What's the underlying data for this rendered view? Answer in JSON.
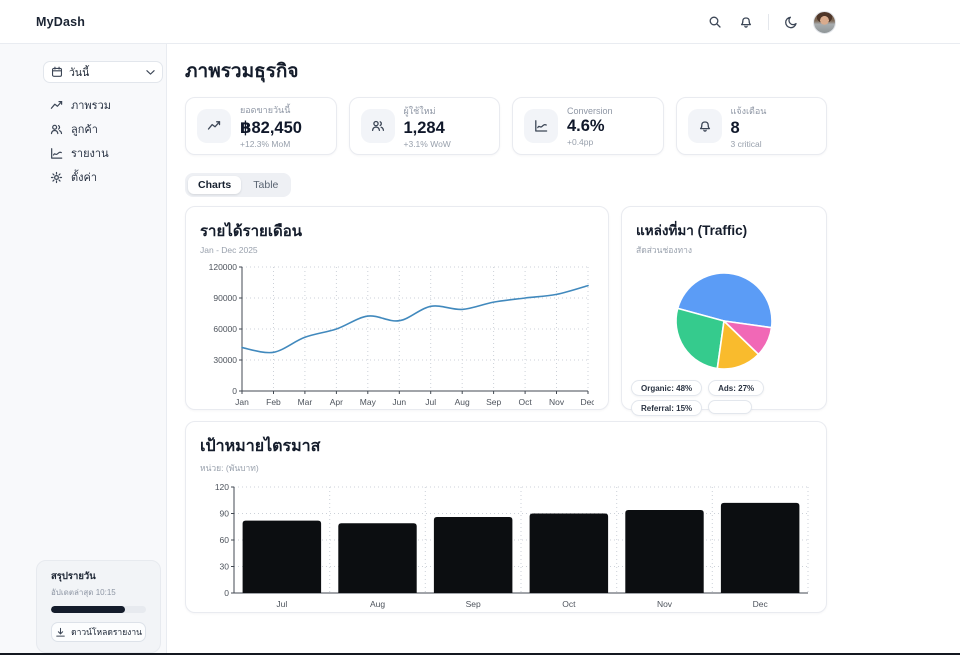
{
  "header": {
    "logo": "MyDash"
  },
  "sidebar": {
    "period_selector": {
      "label": "วันนี้"
    },
    "items": [
      {
        "label": "ภาพรวม",
        "icon": "trending-up"
      },
      {
        "label": "ลูกค้า",
        "icon": "users"
      },
      {
        "label": "รายงาน",
        "icon": "line-chart"
      },
      {
        "label": "ตั้งค่า",
        "icon": "gear"
      }
    ],
    "summary": {
      "title": "สรุปรายวัน",
      "updated": "อัปเดตล่าสุด 10:15",
      "progress_percent": 78,
      "download_label": "ดาวน์โหลดรายงาน"
    }
  },
  "main": {
    "page_title": "ภาพรวมธุรกิจ",
    "kpis": [
      {
        "icon": "trending-up-icon",
        "label": "ยอดขายวันนี้",
        "value": "฿82,450",
        "sub": "+12.3% MoM"
      },
      {
        "icon": "users-icon",
        "label": "ผู้ใช้ใหม่",
        "value": "1,284",
        "sub": "+3.1% WoW"
      },
      {
        "icon": "line-chart-icon",
        "label": "Conversion",
        "value": "4.6%",
        "sub": "+0.4pp"
      },
      {
        "icon": "bell-icon",
        "label": "แจ้งเตือน",
        "value": "8",
        "sub": "3 critical"
      }
    ],
    "tabs": [
      {
        "label": "Charts",
        "active": true
      },
      {
        "label": "Table",
        "active": false
      }
    ]
  },
  "chart_data": [
    {
      "type": "line",
      "title": "รายได้รายเดือน",
      "subtitle": "Jan - Dec 2025",
      "x": [
        "Jan",
        "Feb",
        "Mar",
        "Apr",
        "May",
        "Jun",
        "Jul",
        "Aug",
        "Sep",
        "Oct",
        "Nov",
        "Dec"
      ],
      "values": [
        42000,
        37500,
        52000,
        60000,
        72500,
        68000,
        82000,
        79000,
        86000,
        90000,
        93500,
        102000
      ],
      "ylim": [
        0,
        120000
      ],
      "yticks": [
        0,
        30000,
        60000,
        90000,
        120000
      ],
      "line_color": "#4189bd",
      "grid": "dotted"
    },
    {
      "type": "pie",
      "title": "แหล่งที่มา (Traffic)",
      "subtitle": "สัดส่วนช่องทาง",
      "labels": [
        "Organic",
        "Ads",
        "Referral",
        ""
      ],
      "values": [
        48,
        27,
        15,
        10
      ],
      "colors": [
        "#5b9cf6",
        "#35cb8d",
        "#f9bb2d",
        "#f168b6"
      ],
      "legend": [
        "Organic: 48%",
        "Ads: 27%",
        "Referral: 15%"
      ],
      "legend_position": "bottom"
    },
    {
      "type": "bar",
      "title": "เป้าหมายไตรมาส",
      "subtitle": "หน่วย: (พันบาท)",
      "categories": [
        "Jul",
        "Aug",
        "Sep",
        "Oct",
        "Nov",
        "Dec"
      ],
      "values": [
        82,
        79,
        86,
        90,
        94,
        102
      ],
      "ylim": [
        0,
        120
      ],
      "yticks": [
        0,
        30,
        60,
        90,
        120
      ],
      "bar_color": "#0c0e11",
      "grid": "dotted"
    }
  ]
}
